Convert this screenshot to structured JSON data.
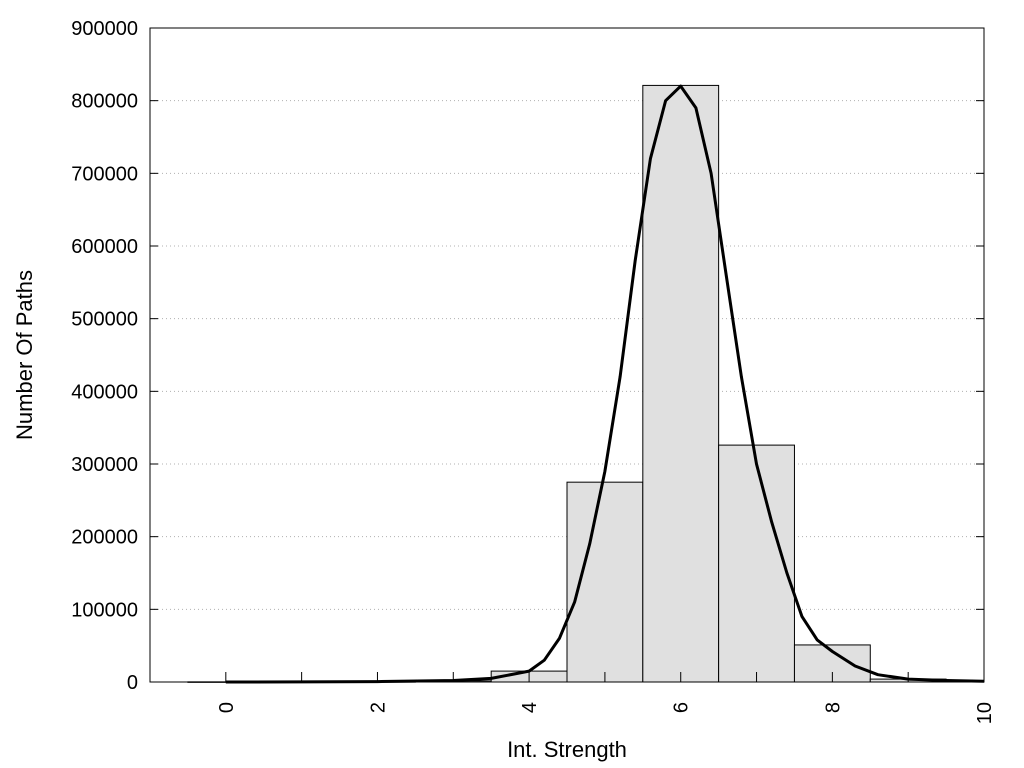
{
  "chart_data": {
    "type": "bar",
    "title": "",
    "xlabel": "Int. Strength",
    "ylabel": "Number Of Paths",
    "xlim": [
      -1,
      10
    ],
    "ylim": [
      0,
      900000
    ],
    "x_ticks": [
      "0",
      "2",
      "4",
      "6",
      "8",
      "10"
    ],
    "y_ticks": [
      "0",
      "100000",
      "200000",
      "300000",
      "400000",
      "500000",
      "600000",
      "700000",
      "800000",
      "900000"
    ],
    "grid": "horizontal dotted",
    "bar_width": 1,
    "bar_color": "#e0e0e0",
    "bars": [
      {
        "x": 0,
        "value": 200
      },
      {
        "x": 1,
        "value": 300
      },
      {
        "x": 2,
        "value": 500
      },
      {
        "x": 3,
        "value": 1500
      },
      {
        "x": 4,
        "value": 15000
      },
      {
        "x": 5,
        "value": 275000
      },
      {
        "x": 6,
        "value": 821000
      },
      {
        "x": 7,
        "value": 326000
      },
      {
        "x": 8,
        "value": 51000
      },
      {
        "x": 9,
        "value": 4000
      },
      {
        "x": 10,
        "value": 1000
      }
    ],
    "curve": {
      "color": "#000000",
      "points": [
        [
          0,
          0
        ],
        [
          1,
          100
        ],
        [
          2,
          500
        ],
        [
          3,
          2000
        ],
        [
          3.5,
          5000
        ],
        [
          4,
          15000
        ],
        [
          4.2,
          30000
        ],
        [
          4.4,
          60000
        ],
        [
          4.6,
          110000
        ],
        [
          4.8,
          190000
        ],
        [
          5,
          290000
        ],
        [
          5.2,
          420000
        ],
        [
          5.4,
          580000
        ],
        [
          5.6,
          720000
        ],
        [
          5.8,
          800000
        ],
        [
          6,
          820000
        ],
        [
          6.2,
          790000
        ],
        [
          6.4,
          700000
        ],
        [
          6.6,
          560000
        ],
        [
          6.8,
          420000
        ],
        [
          7,
          300000
        ],
        [
          7.2,
          220000
        ],
        [
          7.4,
          150000
        ],
        [
          7.6,
          90000
        ],
        [
          7.8,
          58000
        ],
        [
          8,
          42000
        ],
        [
          8.3,
          22000
        ],
        [
          8.6,
          10000
        ],
        [
          9,
          4000
        ],
        [
          9.5,
          2000
        ],
        [
          10,
          1000
        ]
      ]
    }
  }
}
